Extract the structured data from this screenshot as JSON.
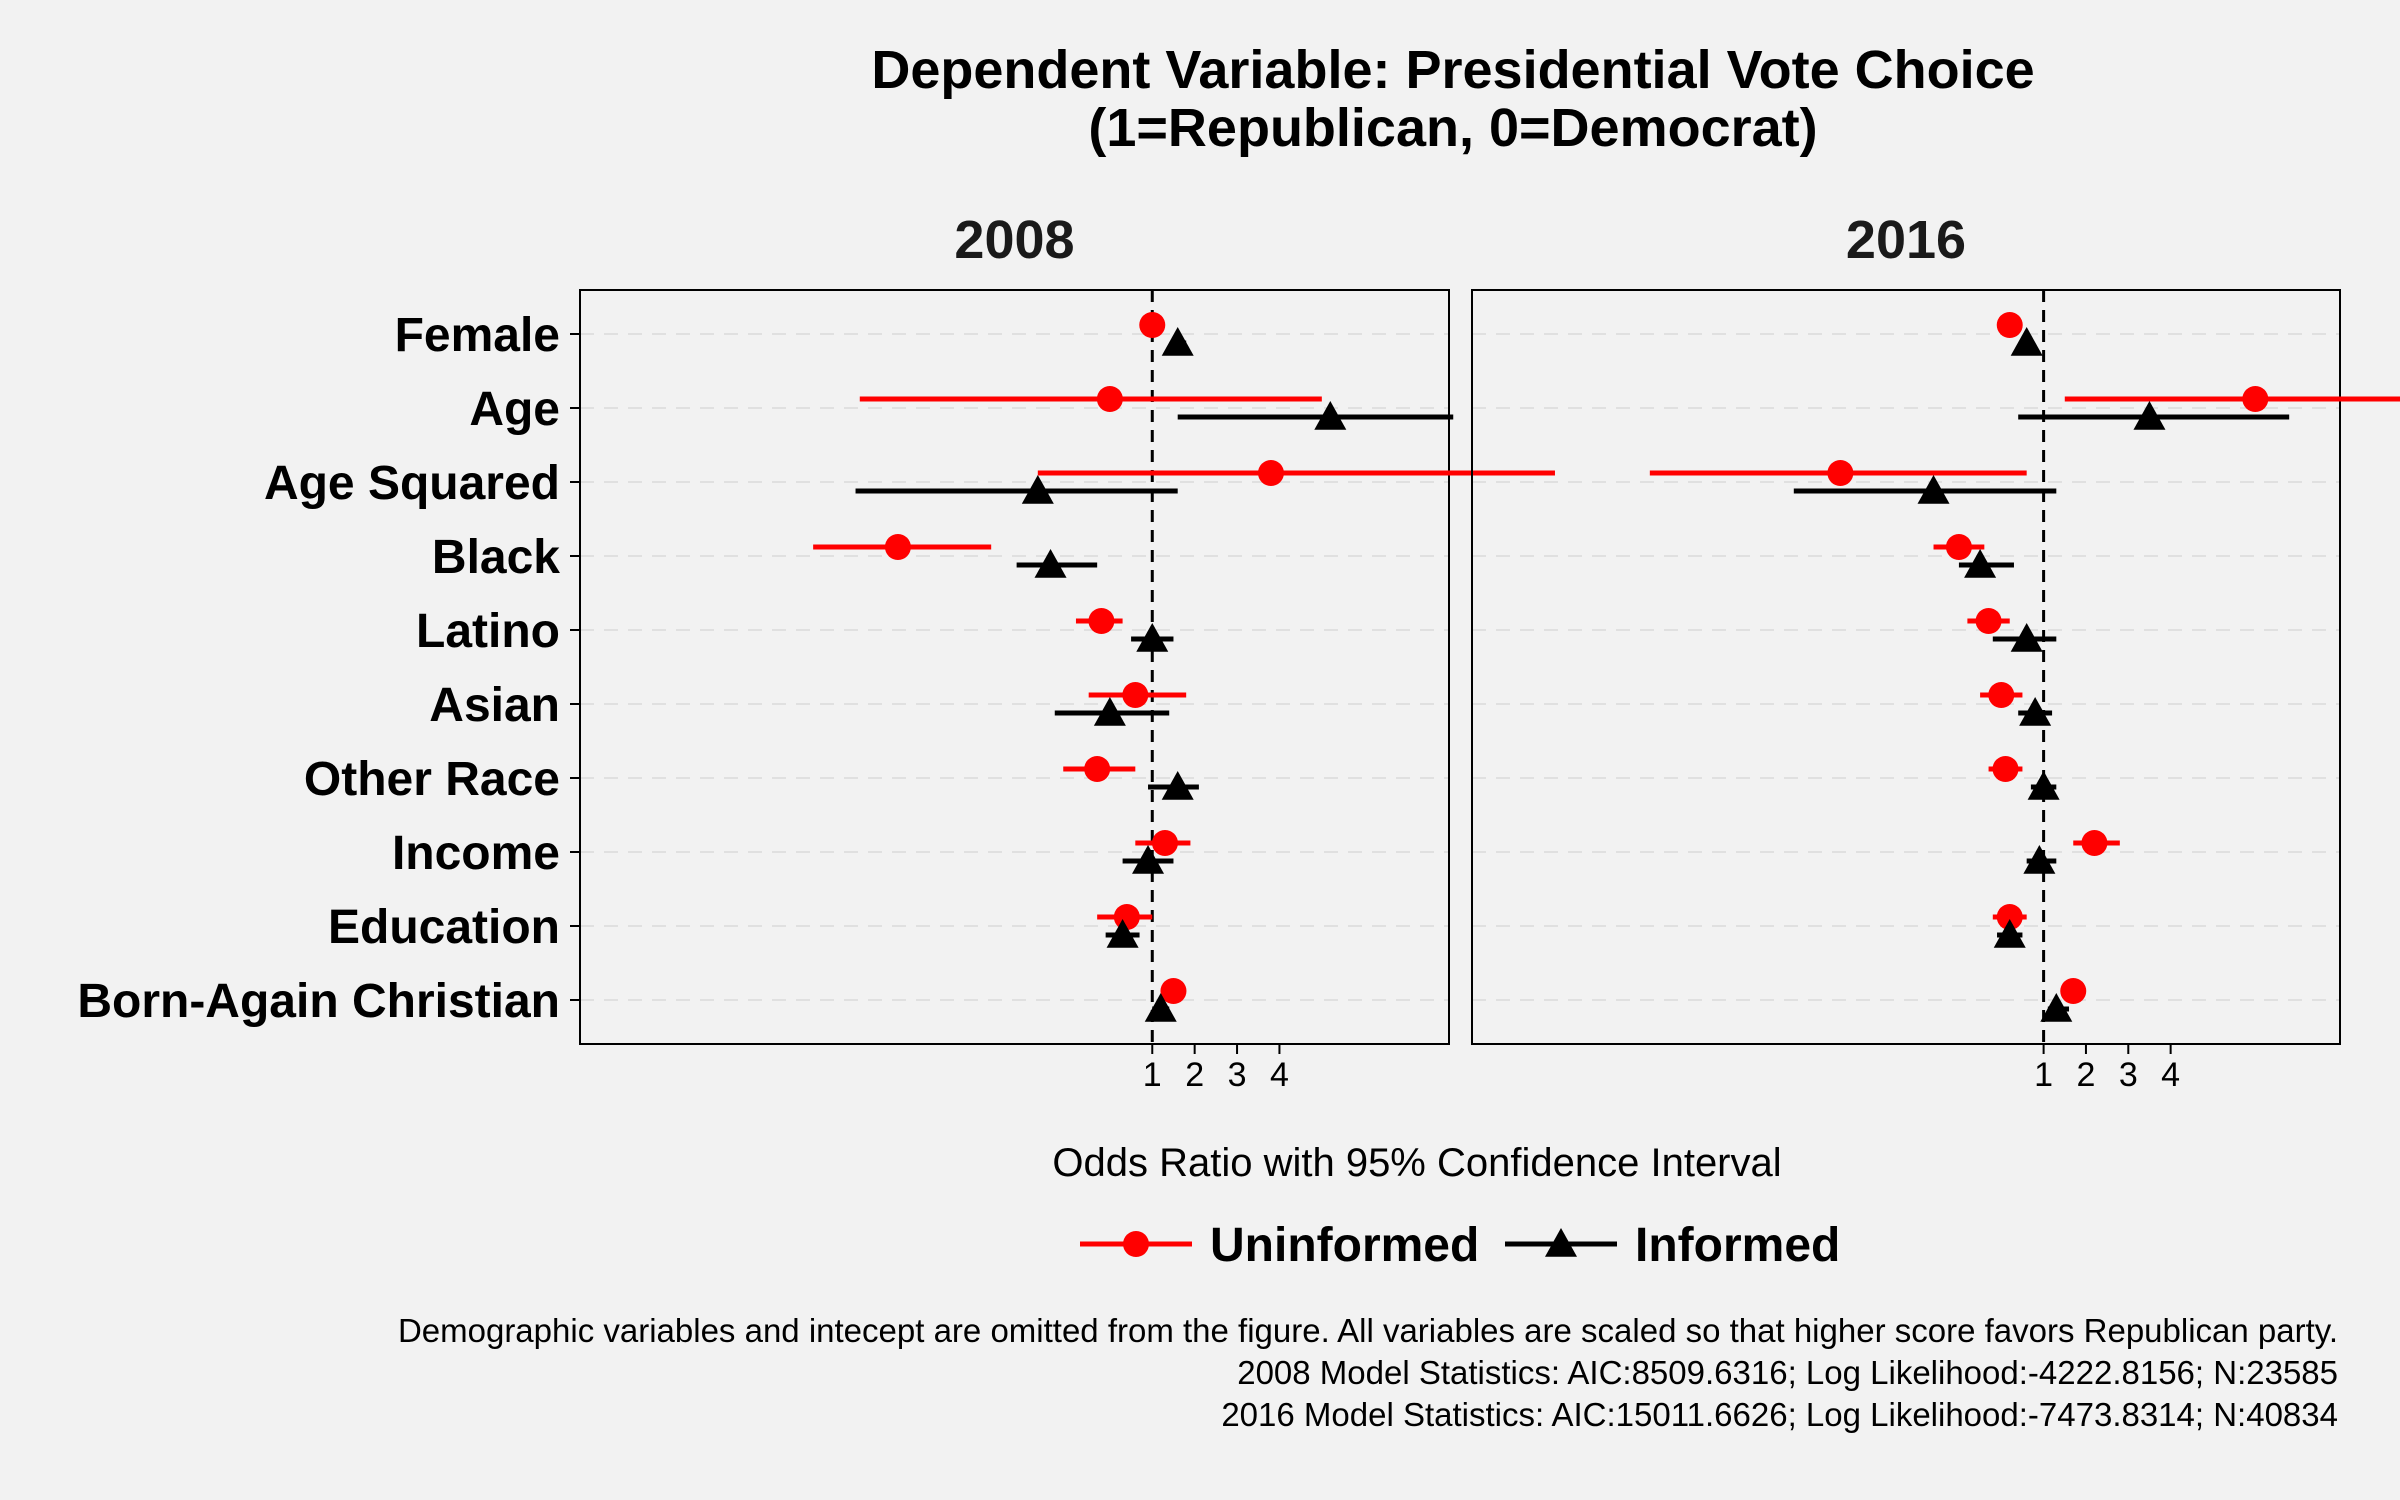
{
  "chart_data": {
    "type": "scatter",
    "subtype": "coefficient-plot",
    "title": [
      "Dependent Variable: Presidential Vote Choice",
      "(1=Republican, 0=Democrat)"
    ],
    "xlabel": "Odds Ratio with 95% Confidence Interval",
    "x_ticks": [
      "1",
      "2",
      "3",
      "4"
    ],
    "reference_line": 1,
    "categories": [
      "Female",
      "Age",
      "Age Squared",
      "Black",
      "Latino",
      "Asian",
      "Other Race",
      "Income",
      "Education",
      "Born-Again Christian"
    ],
    "series_styles": [
      {
        "name": "Uninformed",
        "color": "#ff0000",
        "marker": "circle"
      },
      {
        "name": "Informed",
        "color": "#000000",
        "marker": "triangle"
      }
    ],
    "facets": [
      {
        "label": "2008",
        "xlim": [
          -12.5,
          8.0
        ],
        "series": [
          {
            "name": "Uninformed",
            "points": [
              {
                "label": "Female",
                "value": 1.0,
                "lo": 0.9,
                "hi": 1.1
              },
              {
                "label": "Age",
                "value": 0.0,
                "lo": -5.9,
                "hi": 5.0
              },
              {
                "label": "Age Squared",
                "value": 3.8,
                "lo": -1.7,
                "hi": 10.5
              },
              {
                "label": "Black",
                "value": -5.0,
                "lo": -7.0,
                "hi": -2.8
              },
              {
                "label": "Latino",
                "value": -0.2,
                "lo": -0.8,
                "hi": 0.3
              },
              {
                "label": "Asian",
                "value": 0.6,
                "lo": -0.5,
                "hi": 1.8
              },
              {
                "label": "Other Race",
                "value": -0.3,
                "lo": -1.1,
                "hi": 0.6
              },
              {
                "label": "Income",
                "value": 1.3,
                "lo": 0.6,
                "hi": 1.9
              },
              {
                "label": "Education",
                "value": 0.4,
                "lo": -0.3,
                "hi": 1.0
              },
              {
                "label": "Born-Again Christian",
                "value": 1.5,
                "lo": 1.3,
                "hi": 1.7
              }
            ]
          },
          {
            "name": "Informed",
            "points": [
              {
                "label": "Female",
                "value": 1.6,
                "lo": 1.5,
                "hi": 1.8
              },
              {
                "label": "Age",
                "value": 5.2,
                "lo": 1.6,
                "hi": 8.1
              },
              {
                "label": "Age Squared",
                "value": -1.7,
                "lo": -6.0,
                "hi": 1.6
              },
              {
                "label": "Black",
                "value": -1.4,
                "lo": -2.2,
                "hi": -0.3
              },
              {
                "label": "Latino",
                "value": 1.0,
                "lo": 0.5,
                "hi": 1.5
              },
              {
                "label": "Asian",
                "value": 0.0,
                "lo": -1.3,
                "hi": 1.4
              },
              {
                "label": "Other Race",
                "value": 1.6,
                "lo": 0.9,
                "hi": 2.1
              },
              {
                "label": "Income",
                "value": 0.9,
                "lo": 0.3,
                "hi": 1.5
              },
              {
                "label": "Education",
                "value": 0.3,
                "lo": -0.1,
                "hi": 0.7
              },
              {
                "label": "Born-Again Christian",
                "value": 1.2,
                "lo": 1.0,
                "hi": 1.4
              }
            ]
          }
        ]
      },
      {
        "label": "2016",
        "xlim": [
          -12.5,
          8.0
        ],
        "series": [
          {
            "name": "Uninformed",
            "points": [
              {
                "label": "Female",
                "value": 0.2,
                "lo": 0.1,
                "hi": 0.3
              },
              {
                "label": "Age",
                "value": 6.0,
                "lo": 1.5,
                "hi": 10.4
              },
              {
                "label": "Age Squared",
                "value": -3.8,
                "lo": -8.3,
                "hi": 0.6
              },
              {
                "label": "Black",
                "value": -1.0,
                "lo": -1.6,
                "hi": -0.4
              },
              {
                "label": "Latino",
                "value": -0.3,
                "lo": -0.8,
                "hi": 0.2
              },
              {
                "label": "Asian",
                "value": 0.0,
                "lo": -0.5,
                "hi": 0.5
              },
              {
                "label": "Other Race",
                "value": 0.1,
                "lo": -0.3,
                "hi": 0.5
              },
              {
                "label": "Income",
                "value": 2.2,
                "lo": 1.7,
                "hi": 2.8
              },
              {
                "label": "Education",
                "value": 0.2,
                "lo": -0.2,
                "hi": 0.6
              },
              {
                "label": "Born-Again Christian",
                "value": 1.7,
                "lo": 1.5,
                "hi": 1.9
              }
            ]
          },
          {
            "name": "Informed",
            "points": [
              {
                "label": "Female",
                "value": 0.6,
                "lo": 0.5,
                "hi": 0.7
              },
              {
                "label": "Age",
                "value": 3.5,
                "lo": 0.4,
                "hi": 6.8
              },
              {
                "label": "Age Squared",
                "value": -1.6,
                "lo": -4.9,
                "hi": 1.3
              },
              {
                "label": "Black",
                "value": -0.5,
                "lo": -1.0,
                "hi": 0.3
              },
              {
                "label": "Latino",
                "value": 0.6,
                "lo": -0.2,
                "hi": 1.3
              },
              {
                "label": "Asian",
                "value": 0.8,
                "lo": 0.4,
                "hi": 1.2
              },
              {
                "label": "Other Race",
                "value": 1.0,
                "lo": 0.7,
                "hi": 1.3
              },
              {
                "label": "Income",
                "value": 0.9,
                "lo": 0.6,
                "hi": 1.3
              },
              {
                "label": "Education",
                "value": 0.2,
                "lo": -0.1,
                "hi": 0.5
              },
              {
                "label": "Born-Again Christian",
                "value": 1.3,
                "lo": 1.1,
                "hi": 1.6
              }
            ]
          }
        ]
      }
    ],
    "legend": {
      "position": "bottom",
      "entries": [
        "Uninformed",
        "Informed"
      ]
    },
    "caption": [
      "Demographic variables and intecept are omitted from the figure. All variables are scaled so that higher score favors Republican party.",
      "2008 Model Statistics: AIC:8509.6316; Log Likelihood:-4222.8156; N:23585",
      "2016 Model Statistics: AIC:15011.6626; Log Likelihood:-7473.8314; N:40834"
    ],
    "grid": {
      "horizontal_dashed": true,
      "vertical": false
    }
  }
}
